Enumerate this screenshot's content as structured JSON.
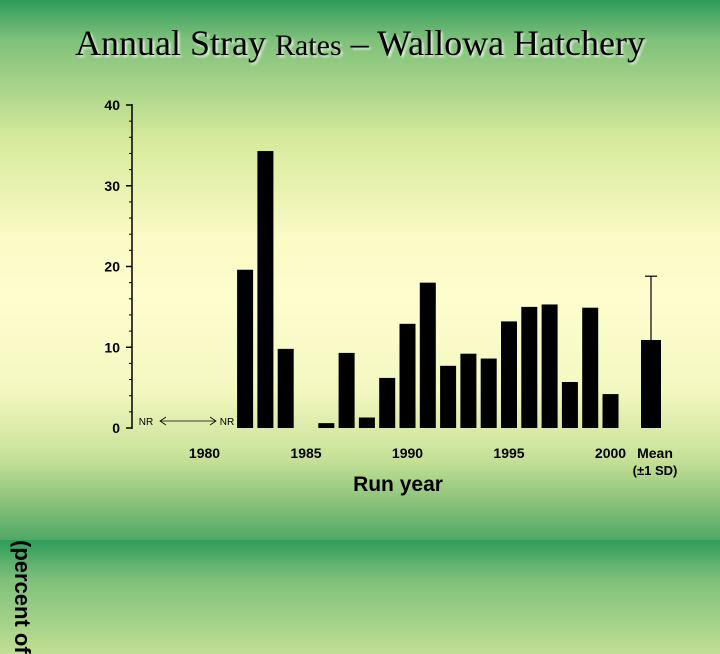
{
  "title": {
    "part1": "Annual Stray",
    "part2": "Rates",
    "part3": "– Wallowa Hatchery"
  },
  "chart_data": {
    "type": "bar",
    "title": "Annual Stray Rates – Wallowa Hatchery",
    "xlabel": "Run year",
    "ylabel_visible": "(percent of",
    "ylim": [
      0,
      40
    ],
    "y_ticks": [
      "0",
      "10",
      "20",
      "30",
      "40"
    ],
    "x_ticks": [
      "1980",
      "1985",
      "1990",
      "1995",
      "2000"
    ],
    "x": [
      1982,
      1983,
      1984,
      1986,
      1987,
      1988,
      1989,
      1990,
      1991,
      1992,
      1993,
      1994,
      1995,
      1996,
      1997,
      1998,
      1999,
      2000
    ],
    "values": [
      19.6,
      34.3,
      9.8,
      0.6,
      9.3,
      1.3,
      6.2,
      12.9,
      18.0,
      7.7,
      9.2,
      8.6,
      13.2,
      15.0,
      15.3,
      5.7,
      14.9,
      4.2
    ],
    "mean": {
      "label": "Mean",
      "sd_label": "(±1 SD)",
      "value": 10.9,
      "sd_upper": 18.8
    },
    "nr_annotation": {
      "left": "NR",
      "right": "NR"
    },
    "grid": false,
    "bar_color": "#000000"
  }
}
